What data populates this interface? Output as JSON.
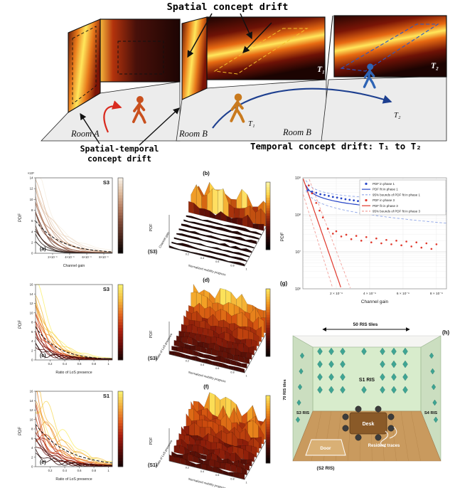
{
  "top_diagram": {
    "title": "Spatial concept drift",
    "spatial_temporal_line1": "Spatial-temporal",
    "spatial_temporal_line2": "concept drift",
    "temporal_label": "Temporal concept drift: T₁ to T₂",
    "room_a": "Room A",
    "room_b1": "Room B",
    "room_b2": "Room B",
    "t1_wall": "T₁",
    "t2_wall": "T₂",
    "t1_floor": "T₁",
    "t2_floor": "T₂",
    "colors": {
      "person_a": "#c9501e",
      "person_b1": "#c97a1e",
      "person_b2": "#2e64b5",
      "arrow_red": "#d92b1f",
      "arrow_blue": "#1d3f8f",
      "floor": "#ececec"
    }
  },
  "chart_data": [
    {
      "id": "a",
      "type": "line",
      "panel_label": "(a)",
      "tag": "S3",
      "xlabel": "Channel gain",
      "ylabel": "PDF",
      "y_unit": "×10⁸",
      "x_ticks": [
        "2×10⁻⁹",
        "4×10⁻⁹",
        "6×10⁻⁹",
        "8×10⁻⁹"
      ],
      "y_ticks": [
        0,
        2,
        4,
        6,
        8,
        10,
        12,
        14
      ],
      "ylim": [
        0,
        14
      ],
      "n_curves": 16,
      "peak_range": [
        2.5,
        14
      ],
      "decay": 4.6,
      "wiggle": 0.12,
      "tail": false,
      "dashed_peak": 6,
      "colormap": [
        "#f6eee2",
        "#dcb89b",
        "#b47c60",
        "#7c4836",
        "#46241b",
        "#0a0504"
      ]
    },
    {
      "id": "b",
      "type": "surface",
      "panel_label": "(b)",
      "tag": "(S3)",
      "xlabel": "Channel gain",
      "ylabel": "Normalized mobility progress",
      "zlabel": "PDF",
      "y_ticks": [
        0.2,
        0.4,
        0.6,
        0.8,
        1
      ],
      "profile": "ridge-back",
      "colormap": [
        "#000000",
        "#2b0706",
        "#641109",
        "#a8320c",
        "#e87e16",
        "#ffd84d",
        "#fdf3a0"
      ]
    },
    {
      "id": "c",
      "type": "line",
      "panel_label": "(c)",
      "tag": "S3",
      "xlabel": "Ratio of LoS presence",
      "ylabel": "PDF",
      "y_unit": "",
      "x_ticks": [
        "0.2",
        "0.4",
        "0.6",
        "0.8",
        "1"
      ],
      "y_ticks": [
        0,
        2,
        4,
        6,
        8,
        10,
        12,
        14,
        16
      ],
      "ylim": [
        0,
        16
      ],
      "n_curves": 18,
      "peak_range": [
        1.5,
        16
      ],
      "decay": 5.2,
      "wiggle": 0.16,
      "tail": true,
      "dashed_peak": 7,
      "colormap": [
        "#f9ee6d",
        "#f4b93c",
        "#e2661f",
        "#b3230f",
        "#6e0c08",
        "#1c0404"
      ]
    },
    {
      "id": "d",
      "type": "surface",
      "panel_label": "(d)",
      "tag": "(S3)",
      "xlabel": "Ratio of LoS presence",
      "ylabel": "Normalized mobility progress",
      "zlabel": "PDF",
      "y_ticks": [
        0.2,
        0.4,
        0.6,
        0.8,
        1
      ],
      "profile": "decay",
      "colormap": [
        "#0a0302",
        "#420b06",
        "#8c1d0a",
        "#d2500f",
        "#f29c22",
        "#fce25a"
      ]
    },
    {
      "id": "e",
      "type": "line",
      "panel_label": "(e)",
      "tag": "S1",
      "xlabel": "Ratio of LoS presence",
      "ylabel": "PDF",
      "y_unit": "",
      "x_ticks": [
        "0.2",
        "0.4",
        "0.6",
        "0.8",
        "1"
      ],
      "y_ticks": [
        0,
        2,
        4,
        6,
        8,
        10,
        12,
        14,
        16
      ],
      "ylim": [
        0,
        16
      ],
      "n_curves": 18,
      "peak_range": [
        2,
        16
      ],
      "decay": 3.6,
      "wiggle": 0.3,
      "tail": true,
      "dashed_peak": 9,
      "colormap": [
        "#f9ee6d",
        "#f2a93a",
        "#df5c1d",
        "#a81c0e",
        "#5c0a07",
        "#170303"
      ]
    },
    {
      "id": "f",
      "type": "surface",
      "panel_label": "(f)",
      "tag": "(S1)",
      "xlabel": "Ratio of LoS presence",
      "ylabel": "Normalized mobility progress",
      "zlabel": "PDF",
      "y_ticks": [
        0.2,
        0.4,
        0.6,
        0.8,
        1
      ],
      "profile": "decay-rough",
      "colormap": [
        "#0a0302",
        "#420b06",
        "#8c1d0a",
        "#d2500f",
        "#f29c22",
        "#fce25a"
      ]
    },
    {
      "id": "g",
      "type": "scatter",
      "panel_label": "(g)",
      "xlabel": "Channel gain",
      "ylabel": "PDF",
      "x_ticks": [
        "2 × 10⁻⁹",
        "4 × 10⁻⁹",
        "6 × 10⁻⁹",
        "8 × 10⁻⁹"
      ],
      "x_tick_pos": [
        2,
        4,
        6,
        8
      ],
      "xlim": [
        0,
        8.6
      ],
      "y_ticks": [
        "10⁶",
        "10⁷",
        "10⁸",
        "10⁹"
      ],
      "ylim_log": [
        6,
        9
      ],
      "legend": [
        {
          "label": "PDF in phase 1",
          "marker": "dot",
          "color": "#2746c8"
        },
        {
          "label": "PDF fit in phase 1",
          "marker": "line",
          "color": "#2746c8"
        },
        {
          "label": "95% bounds of PDF fit in phase 1",
          "marker": "dash",
          "color": "#8fa6e8"
        },
        {
          "label": "PDF in phase 3",
          "marker": "dot",
          "color": "#e0372b"
        },
        {
          "label": "PDF fit in phase 3",
          "marker": "line",
          "color": "#e0372b"
        },
        {
          "label": "95% bounds of PDF fit in phase 3",
          "marker": "dash",
          "color": "#f2a09a"
        }
      ],
      "units": {
        "x": "1e-9",
        "y": "1e6"
      },
      "series": {
        "phase1_points": [
          [
            0.3,
            460
          ],
          [
            0.55,
            425
          ],
          [
            0.8,
            395
          ],
          [
            1.05,
            360
          ],
          [
            1.3,
            345
          ],
          [
            1.55,
            325
          ],
          [
            1.8,
            305
          ],
          [
            2.05,
            292
          ],
          [
            2.3,
            278
          ],
          [
            2.55,
            265
          ],
          [
            2.8,
            255
          ],
          [
            3.05,
            246
          ],
          [
            3.3,
            236
          ],
          [
            3.55,
            228
          ],
          [
            3.8,
            218
          ],
          [
            4.05,
            210
          ],
          [
            4.3,
            203
          ],
          [
            4.55,
            197
          ],
          [
            4.8,
            190
          ],
          [
            5.05,
            184
          ],
          [
            5.3,
            178
          ],
          [
            5.55,
            172
          ],
          [
            5.8,
            167
          ],
          [
            6.05,
            162
          ],
          [
            6.3,
            157
          ],
          [
            6.55,
            152
          ],
          [
            6.8,
            148
          ],
          [
            7.05,
            144
          ],
          [
            7.3,
            140
          ],
          [
            7.55,
            136
          ],
          [
            7.8,
            132
          ],
          [
            8.05,
            128
          ]
        ],
        "phase3_points": [
          [
            0.35,
            620
          ],
          [
            0.55,
            380
          ],
          [
            0.8,
            210
          ],
          [
            1.0,
            130
          ],
          [
            1.2,
            85
          ],
          [
            1.5,
            42
          ],
          [
            1.8,
            31
          ],
          [
            2.0,
            36
          ],
          [
            2.3,
            26
          ],
          [
            2.6,
            29
          ],
          [
            2.9,
            22
          ],
          [
            3.2,
            27
          ],
          [
            3.5,
            20
          ],
          [
            3.8,
            25
          ],
          [
            4.1,
            18
          ],
          [
            4.4,
            23
          ],
          [
            4.7,
            17
          ],
          [
            5.0,
            21
          ],
          [
            5.3,
            16
          ],
          [
            5.6,
            20
          ],
          [
            5.9,
            15
          ],
          [
            6.2,
            19
          ],
          [
            6.5,
            14
          ],
          [
            6.8,
            18
          ],
          [
            7.1,
            13
          ],
          [
            7.4,
            17
          ],
          [
            7.7,
            12
          ],
          [
            8.0,
            16
          ]
        ],
        "phase1_fit": {
          "form": "power",
          "a": 308,
          "b": -0.4146
        },
        "phase3_fit": {
          "form": "exp",
          "a": 1000,
          "k": 3
        }
      }
    }
  ],
  "room": {
    "panel_label": "(h)",
    "top_label": "50 RIS tiles",
    "side_label": "70 RIS tiles",
    "back_wall_label": "S1 RIS",
    "left_wall_label": "S3 RIS",
    "right_wall_label": "S4 RIS",
    "front_wall_label": "(S2 RIS)",
    "desk_label": "Desk",
    "traces_label": "Resident traces",
    "door_label": "Door",
    "colors": {
      "wall": "#d8eccc",
      "ris": "#2f9e8f",
      "floor": "#c99a5e",
      "desk": "#8a5a28"
    }
  }
}
